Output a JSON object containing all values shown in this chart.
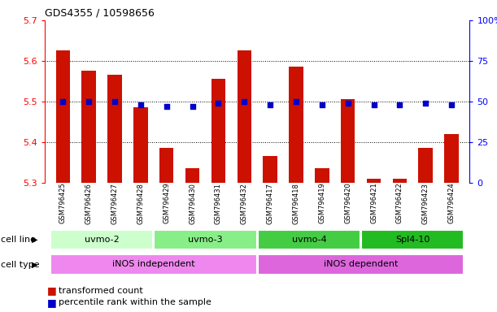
{
  "title": "GDS4355 / 10598656",
  "samples": [
    "GSM796425",
    "GSM796426",
    "GSM796427",
    "GSM796428",
    "GSM796429",
    "GSM796430",
    "GSM796431",
    "GSM796432",
    "GSM796417",
    "GSM796418",
    "GSM796419",
    "GSM796420",
    "GSM796421",
    "GSM796422",
    "GSM796423",
    "GSM796424"
  ],
  "bar_values": [
    5.625,
    5.575,
    5.565,
    5.485,
    5.385,
    5.335,
    5.555,
    5.625,
    5.365,
    5.585,
    5.335,
    5.505,
    5.31,
    5.31,
    5.385,
    5.42
  ],
  "dot_values": [
    50,
    50,
    50,
    48,
    47,
    47,
    49,
    50,
    48,
    50,
    48,
    49,
    48,
    48,
    49,
    48
  ],
  "bar_color": "#cc1100",
  "dot_color": "#0000cc",
  "ylim_left": [
    5.3,
    5.7
  ],
  "ylim_right": [
    0,
    100
  ],
  "yticks_left": [
    5.3,
    5.4,
    5.5,
    5.6,
    5.7
  ],
  "yticks_right": [
    0,
    25,
    50,
    75,
    100
  ],
  "grid_values": [
    5.4,
    5.5,
    5.6
  ],
  "cell_line_colors": [
    "#ccffcc",
    "#88ee88",
    "#44cc44",
    "#22bb22"
  ],
  "cell_lines": [
    {
      "label": "uvmo-2",
      "start": 0,
      "end": 3
    },
    {
      "label": "uvmo-3",
      "start": 4,
      "end": 7
    },
    {
      "label": "uvmo-4",
      "start": 8,
      "end": 11
    },
    {
      "label": "Spl4-10",
      "start": 12,
      "end": 15
    }
  ],
  "cell_type_colors": [
    "#ee88ee",
    "#dd66dd"
  ],
  "cell_types": [
    {
      "label": "iNOS independent",
      "start": 0,
      "end": 7
    },
    {
      "label": "iNOS dependent",
      "start": 8,
      "end": 15
    }
  ],
  "legend_bar_label": "transformed count",
  "legend_dot_label": "percentile rank within the sample",
  "cell_line_label": "cell line",
  "cell_type_label": "cell type"
}
